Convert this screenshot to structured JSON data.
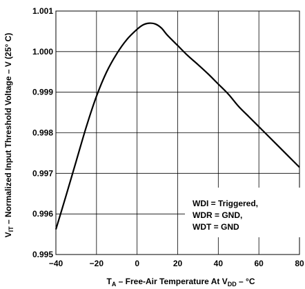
{
  "chart_data": {
    "type": "line",
    "ylabel": "VIT – Normalized Input Threshold Voltage – V (25°C)",
    "ylabel_parts": {
      "main": "V",
      "sub": "IT",
      "rest": " – Normalized Input Threshold Voltage – V (25° C)"
    },
    "xlabel_parts": {
      "main": "T",
      "sub": "A",
      "mid": " – Free-Air Temperature At V",
      "sub2": "DD",
      "rest": " – °C"
    },
    "xlim": [
      -40,
      80
    ],
    "ylim": [
      0.995,
      1.001
    ],
    "xticks": [
      "-40",
      "-20",
      "0",
      "20",
      "40",
      "60",
      "80"
    ],
    "yticks": [
      "0.995",
      "0.996",
      "0.997",
      "0.998",
      "0.999",
      "1.000",
      "1.001"
    ],
    "grid": true,
    "annotations": [
      "WDI = Triggered,",
      "WDR = GND,",
      "WDT = GND"
    ],
    "series": [
      {
        "x": [
          -40,
          -35,
          -30,
          -25,
          -20,
          -15,
          -10,
          -5,
          0,
          3,
          6,
          9,
          12,
          15,
          20,
          25,
          30,
          35,
          40,
          45,
          50,
          55,
          60,
          65,
          70,
          75,
          80
        ],
        "y": [
          0.99562,
          0.99645,
          0.9973,
          0.99815,
          0.9989,
          0.9995,
          0.99995,
          1.0003,
          1.00055,
          1.00066,
          1.0007,
          1.00068,
          1.00058,
          1.0004,
          1.00015,
          0.9999,
          0.99968,
          0.99945,
          0.9992,
          0.99895,
          0.99865,
          0.9984,
          0.99815,
          0.9979,
          0.99765,
          0.9974,
          0.99715
        ]
      }
    ]
  }
}
